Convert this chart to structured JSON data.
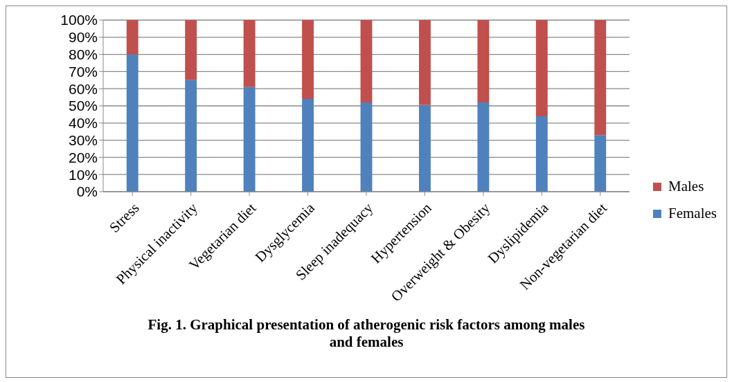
{
  "chart_data": {
    "type": "bar",
    "stacked": true,
    "title": "Fig. 1. Graphical presentation of atherogenic risk factors among males and females",
    "categories": [
      "Stress",
      "Physical inactivity",
      "Vegetarian diet",
      "Dysglycemia",
      "Sleep inadequacy",
      "Hypertension",
      "Overweight & Obesity",
      "Dyslipidemia",
      "Non-vegetarian diet"
    ],
    "series": [
      {
        "name": "Females",
        "color": "#4f81bd",
        "values": [
          80,
          65,
          61,
          54,
          52,
          50.5,
          52,
          44,
          33
        ]
      },
      {
        "name": "Males",
        "color": "#c0504d",
        "values": [
          20,
          35,
          39,
          46,
          48,
          49.5,
          48,
          56,
          67
        ]
      }
    ],
    "ylim": [
      0,
      100
    ],
    "yticks": [
      {
        "value": 0,
        "label": "0%"
      },
      {
        "value": 10,
        "label": "10%"
      },
      {
        "value": 20,
        "label": "20%"
      },
      {
        "value": 30,
        "label": "30%"
      },
      {
        "value": 40,
        "label": "40%"
      },
      {
        "value": 50,
        "label": "50%"
      },
      {
        "value": 60,
        "label": "60%"
      },
      {
        "value": 70,
        "label": "70%"
      },
      {
        "value": 80,
        "label": "80%"
      },
      {
        "value": 90,
        "label": "90%"
      },
      {
        "value": 100,
        "label": "100%"
      }
    ],
    "grid": "y",
    "legend": "right"
  }
}
